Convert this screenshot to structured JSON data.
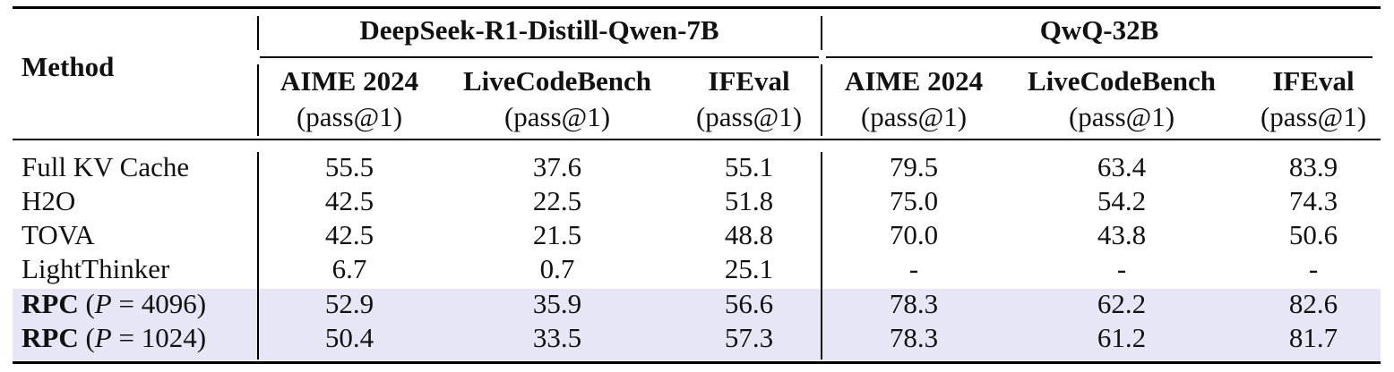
{
  "header": {
    "method": "Method",
    "groups": [
      "DeepSeek-R1-Distill-Qwen-7B",
      "QwQ-32B"
    ],
    "columns": [
      {
        "name": "AIME 2024",
        "metric": "(pass@1)"
      },
      {
        "name": "LiveCodeBench",
        "metric": "(pass@1)"
      },
      {
        "name": "IFEval",
        "metric": "(pass@1)"
      },
      {
        "name": "AIME 2024",
        "metric": "(pass@1)"
      },
      {
        "name": "LiveCodeBench",
        "metric": "(pass@1)"
      },
      {
        "name": "IFEval",
        "metric": "(pass@1)"
      }
    ]
  },
  "rows": [
    {
      "method": "Full KV Cache",
      "values": [
        "55.5",
        "37.6",
        "55.1",
        "79.5",
        "63.4",
        "83.9"
      ]
    },
    {
      "method": "H2O",
      "values": [
        "42.5",
        "22.5",
        "51.8",
        "75.0",
        "54.2",
        "74.3"
      ]
    },
    {
      "method": "TOVA",
      "values": [
        "42.5",
        "21.5",
        "48.8",
        "70.0",
        "43.8",
        "50.6"
      ]
    },
    {
      "method": "LightThinker",
      "values": [
        "6.7",
        "0.7",
        "25.1",
        "-",
        "-",
        "-"
      ]
    },
    {
      "method_bold": "RPC",
      "method_param": "P",
      "method_eq": "=",
      "method_value": "4096",
      "values": [
        "52.9",
        "35.9",
        "56.6",
        "78.3",
        "62.2",
        "82.6"
      ]
    },
    {
      "method_bold": "RPC",
      "method_param": "P",
      "method_eq": "=",
      "method_value": "1024",
      "values": [
        "50.4",
        "33.5",
        "57.3",
        "78.3",
        "61.2",
        "81.7"
      ]
    }
  ],
  "colors": {
    "highlight_row": "#e6e6f7",
    "rule": "#000000"
  }
}
